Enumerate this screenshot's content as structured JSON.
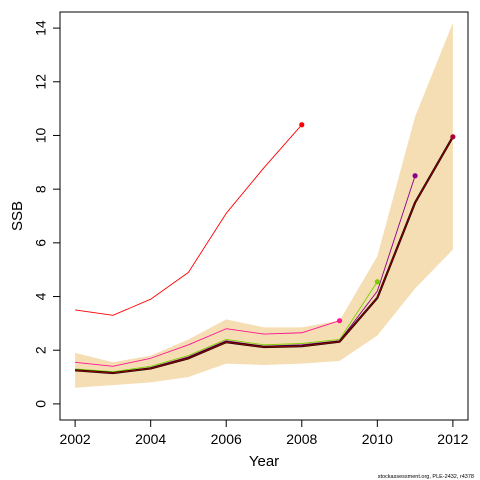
{
  "chart_data": {
    "type": "line",
    "xlabel": "Year",
    "ylabel": "SSB",
    "xlim": [
      2001.6,
      2012.4
    ],
    "ylim": [
      -0.6,
      14.6
    ],
    "xticks": [
      2002,
      2004,
      2006,
      2008,
      2010,
      2012
    ],
    "yticks": [
      0,
      2,
      4,
      6,
      8,
      10,
      12,
      14
    ],
    "grid": false,
    "band": {
      "color": "#F5DEB3",
      "x": [
        2002,
        2003,
        2004,
        2005,
        2006,
        2007,
        2008,
        2009,
        2010,
        2011,
        2012
      ],
      "lower": [
        0.6,
        0.7,
        0.8,
        1.0,
        1.5,
        1.45,
        1.5,
        1.6,
        2.55,
        4.3,
        5.75
      ],
      "upper": [
        1.9,
        1.55,
        1.8,
        2.4,
        3.15,
        2.85,
        2.85,
        3.1,
        5.5,
        10.7,
        14.2
      ]
    },
    "series": [
      {
        "color": "#FF0000",
        "width": 0.9,
        "x": [
          2002,
          2003,
          2004,
          2005,
          2006,
          2007,
          2008
        ],
        "values": [
          3.5,
          3.3,
          3.9,
          4.9,
          7.1,
          8.8,
          10.4
        ]
      },
      {
        "color": "#FF1493",
        "width": 0.9,
        "x": [
          2002,
          2003,
          2004,
          2005,
          2006,
          2007,
          2008,
          2009
        ],
        "values": [
          1.55,
          1.4,
          1.7,
          2.2,
          2.8,
          2.6,
          2.65,
          3.1
        ]
      },
      {
        "color": "#7CCD00",
        "width": 0.9,
        "x": [
          2002,
          2003,
          2004,
          2005,
          2006,
          2007,
          2008,
          2009,
          2010
        ],
        "values": [
          1.3,
          1.2,
          1.4,
          1.8,
          2.4,
          2.2,
          2.25,
          2.4,
          4.55
        ]
      },
      {
        "color": "#8B008B",
        "width": 0.9,
        "x": [
          2002,
          2003,
          2004,
          2005,
          2006,
          2007,
          2008,
          2009,
          2010,
          2011
        ],
        "values": [
          1.25,
          1.15,
          1.35,
          1.75,
          2.35,
          2.15,
          2.2,
          2.35,
          4.2,
          8.5
        ]
      },
      {
        "color": "#000000",
        "width": 2.2,
        "x": [
          2002,
          2003,
          2004,
          2005,
          2006,
          2007,
          2008,
          2009,
          2010,
          2011,
          2012
        ],
        "values": [
          1.25,
          1.15,
          1.32,
          1.7,
          2.3,
          2.12,
          2.15,
          2.32,
          3.95,
          7.5,
          9.95
        ]
      },
      {
        "color": "#8B0000",
        "width": 1.2,
        "x": [
          2002,
          2003,
          2004,
          2005,
          2006,
          2007,
          2008,
          2009,
          2010,
          2011,
          2012
        ],
        "values": [
          1.25,
          1.15,
          1.32,
          1.7,
          2.3,
          2.12,
          2.15,
          2.32,
          3.95,
          7.5,
          9.95
        ]
      }
    ],
    "endpoints": [
      {
        "x": 2008,
        "y": 10.4,
        "color": "#FF0000"
      },
      {
        "x": 2009,
        "y": 3.1,
        "color": "#FF1493"
      },
      {
        "x": 2010,
        "y": 4.55,
        "color": "#7CCD00"
      },
      {
        "x": 2011,
        "y": 8.5,
        "color": "#8B008B"
      },
      {
        "x": 2012,
        "y": 9.95,
        "color": "#B0003A"
      }
    ]
  },
  "footnote": "stockassessment.org, PLE-2432, r4378"
}
